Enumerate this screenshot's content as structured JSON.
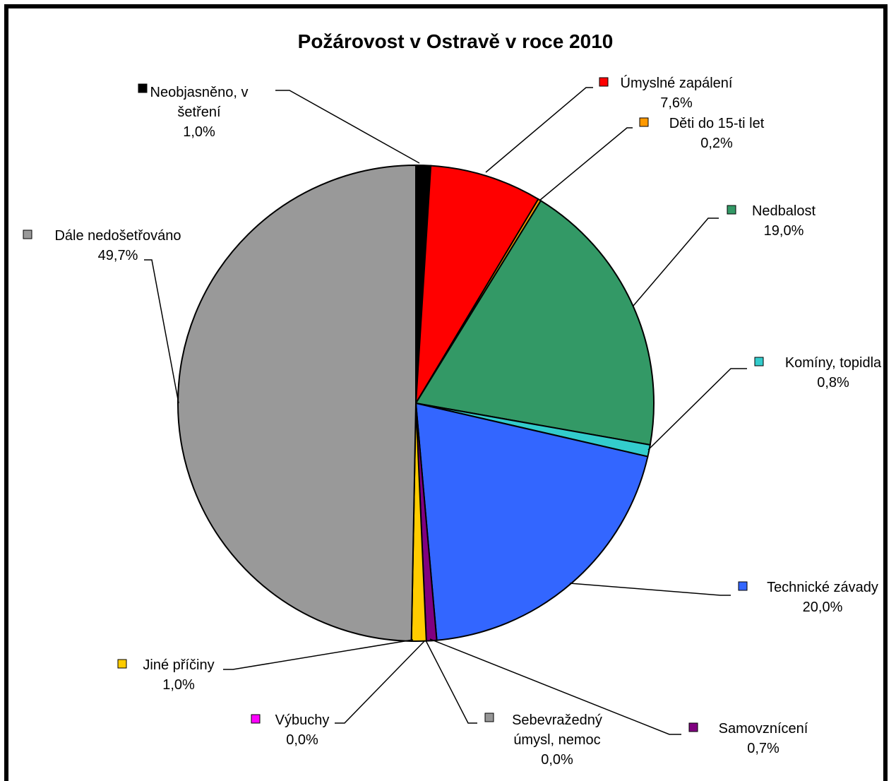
{
  "chart_data": {
    "type": "pie",
    "title": "Požárovost v Ostravě v roce 2010",
    "legend": "none",
    "slices": [
      {
        "name": "Neobjasněno, v šetření",
        "label_lines": [
          "Neobjasněno, v",
          "šetření"
        ],
        "percent_label": "1,0%",
        "value": 1.0,
        "color": "#000000"
      },
      {
        "name": "Úmyslné zapálení",
        "label_lines": [
          "Úmyslné zapálení"
        ],
        "percent_label": "7,6%",
        "value": 7.6,
        "color": "#ff0000"
      },
      {
        "name": "Děti do 15-ti let",
        "label_lines": [
          "Děti do 15-ti let"
        ],
        "percent_label": "0,2%",
        "value": 0.2,
        "color": "#ff9900"
      },
      {
        "name": "Nedbalost",
        "label_lines": [
          "Nedbalost"
        ],
        "percent_label": "19,0%",
        "value": 19.0,
        "color": "#339966"
      },
      {
        "name": "Komíny, topidla",
        "label_lines": [
          "Komíny, topidla"
        ],
        "percent_label": "0,8%",
        "value": 0.8,
        "color": "#33cccc"
      },
      {
        "name": "Technické závady",
        "label_lines": [
          "Technické závady"
        ],
        "percent_label": "20,0%",
        "value": 20.0,
        "color": "#3366ff"
      },
      {
        "name": "Samovznícení",
        "label_lines": [
          "Samovznícení"
        ],
        "percent_label": "0,7%",
        "value": 0.7,
        "color": "#800080"
      },
      {
        "name": "Sebevražedný úmysl, nemoc",
        "label_lines": [
          "Sebevražedný",
          "úmysl, nemoc"
        ],
        "percent_label": "0,0%",
        "value": 0.0,
        "color": "#969696"
      },
      {
        "name": "Výbuchy",
        "label_lines": [
          "Výbuchy"
        ],
        "percent_label": "0,0%",
        "value": 0.0,
        "color": "#ff00ff"
      },
      {
        "name": "Jiné příčiny",
        "label_lines": [
          "Jiné příčiny"
        ],
        "percent_label": "1,0%",
        "value": 1.0,
        "color": "#ffcc00"
      },
      {
        "name": "Dále nedošetřováno",
        "label_lines": [
          "Dále nedošetřováno"
        ],
        "percent_label": "49,7%",
        "value": 49.7,
        "color": "#999999"
      }
    ]
  }
}
